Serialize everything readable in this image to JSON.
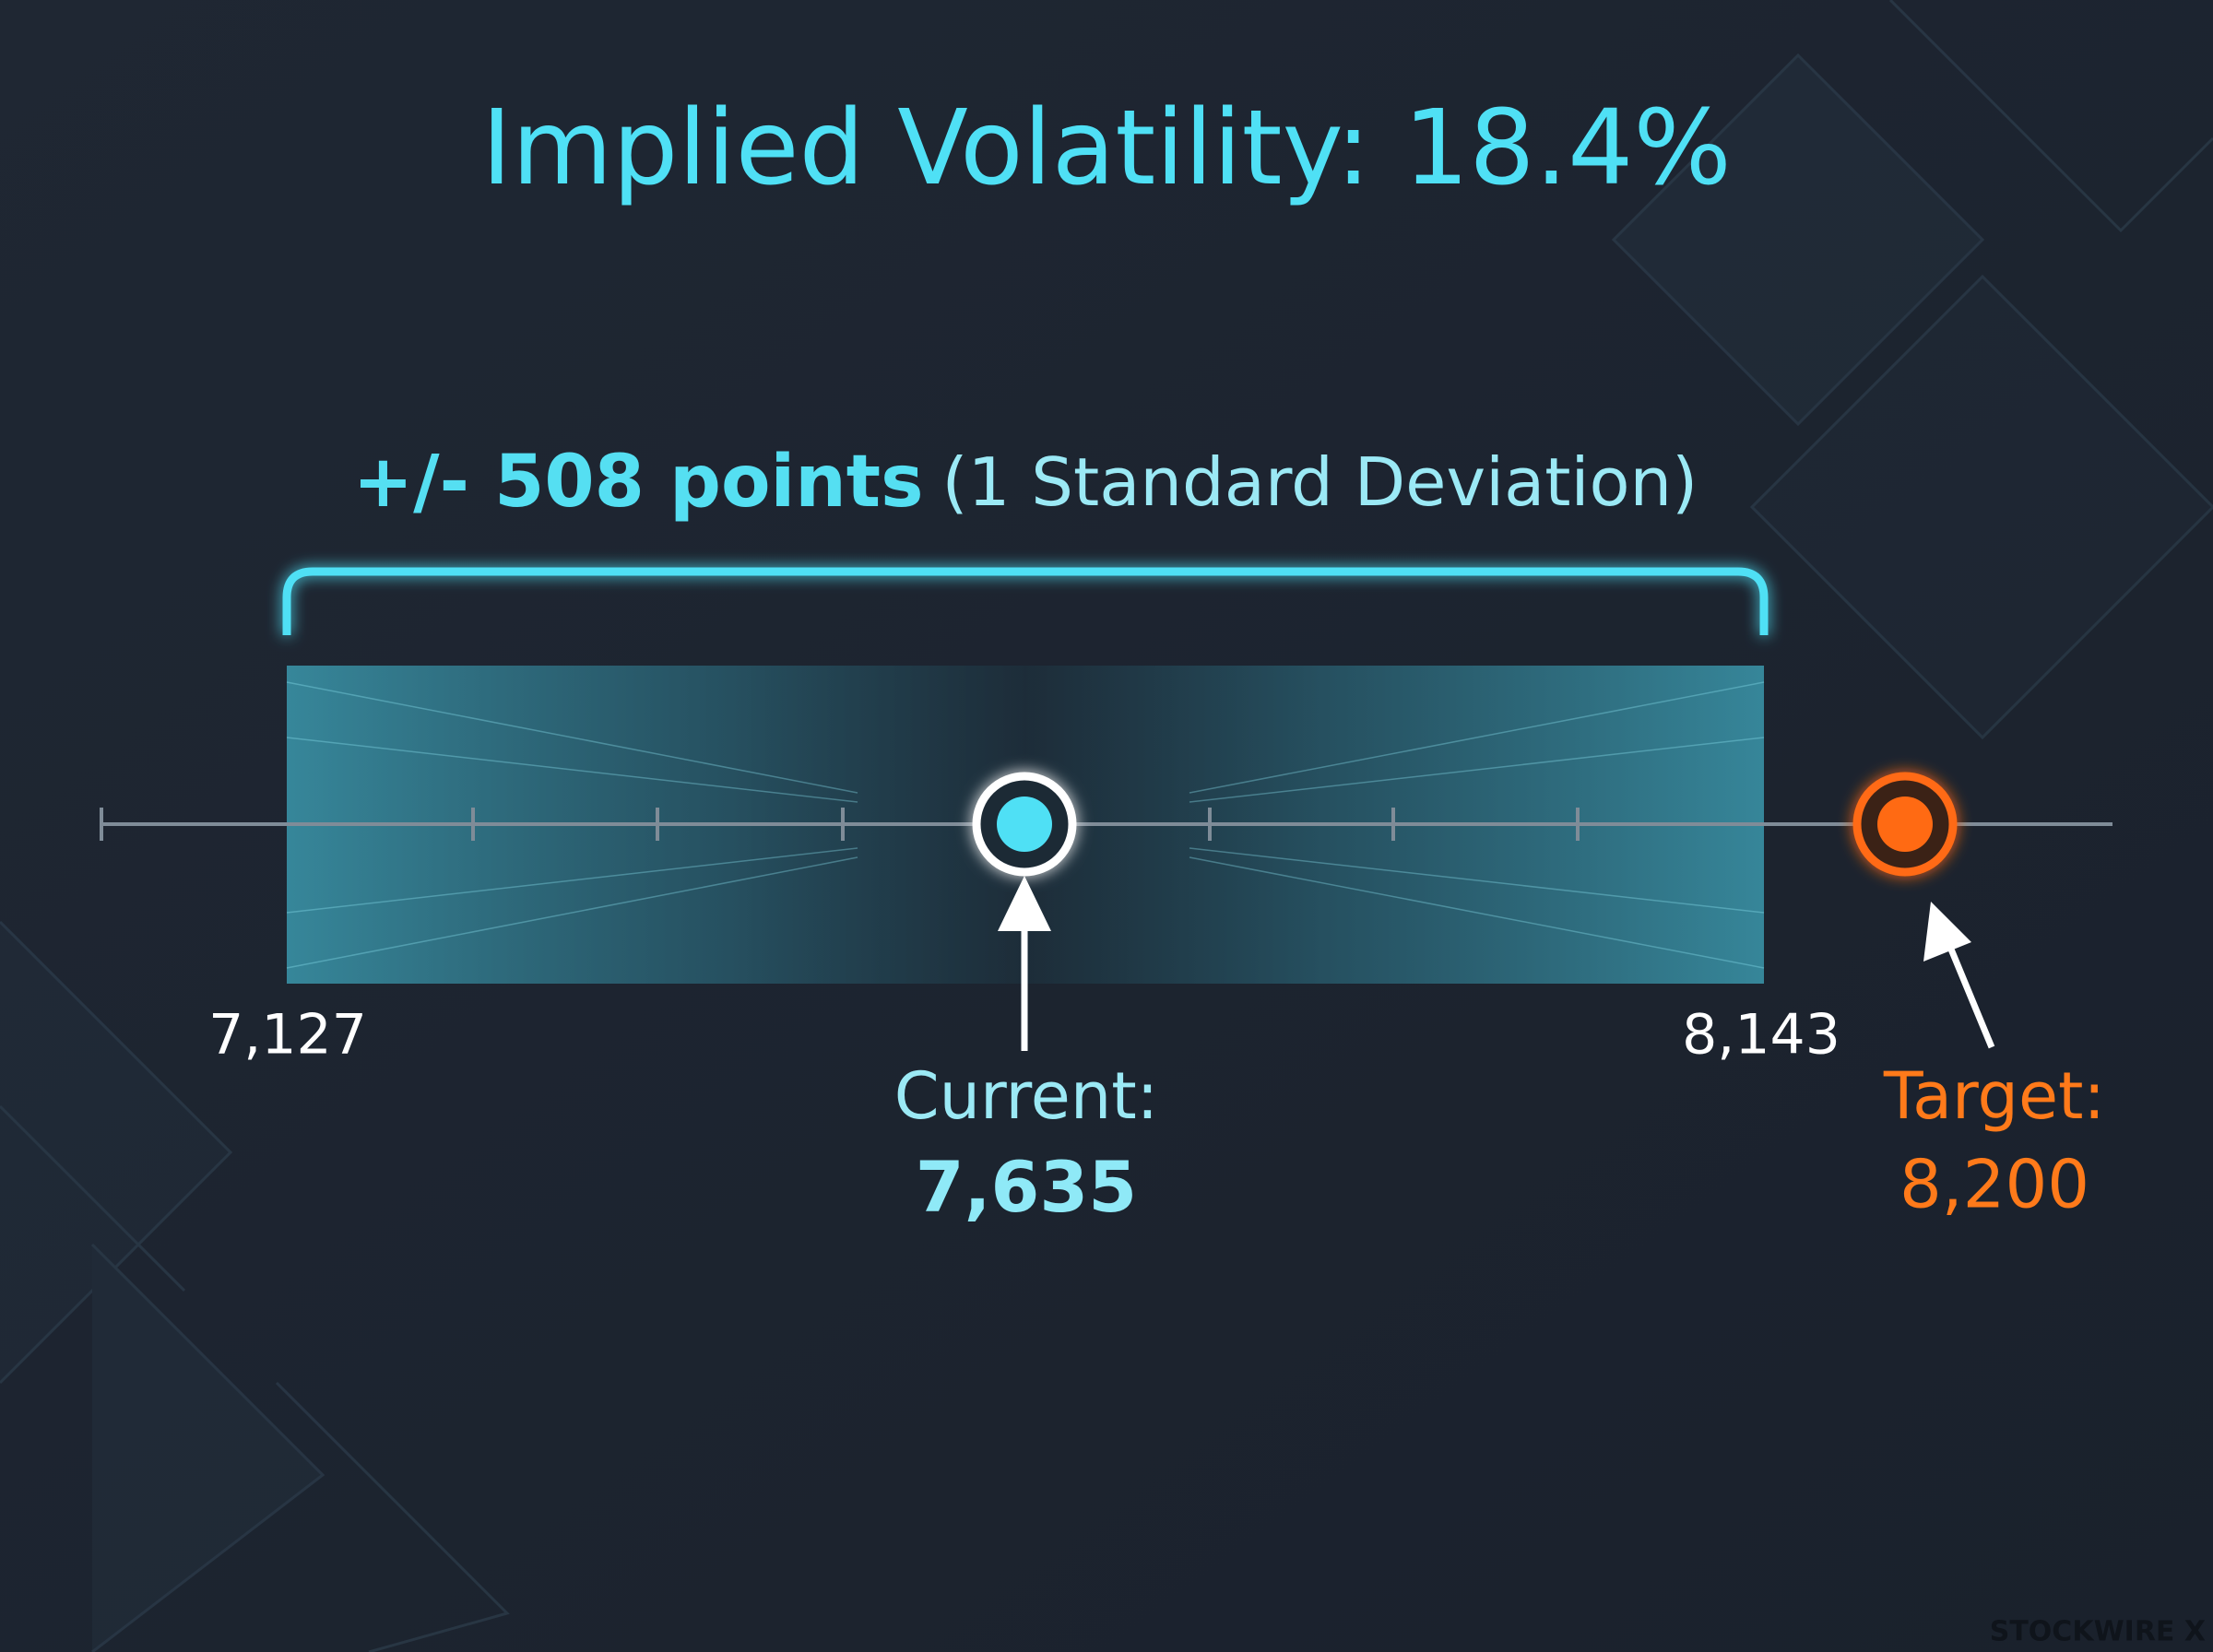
{
  "title": "Implied Volatility: 18.4%",
  "range": {
    "label": "+/- 508 points",
    "note": "(1 Standard Deviation)",
    "low": "7,127",
    "high": "8,143"
  },
  "current": {
    "label": "Current:",
    "value": "7,635"
  },
  "target": {
    "label": "Target:",
    "value": "8,200"
  },
  "watermark": "STOCKWIRE X"
}
